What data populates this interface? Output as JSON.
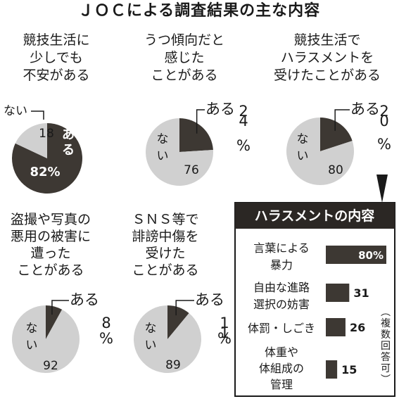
{
  "title": "ＪＯＣによる調査結果の主な内容",
  "colors": {
    "dark": "#3d3833",
    "light": "#d0d0d0",
    "box_header": "#2b2724"
  },
  "labels": {
    "yes": "ある",
    "no": "ない",
    "percent": "%"
  },
  "chart_data": [
    {
      "type": "pie",
      "question": [
        "競技生活に",
        "少しでも",
        "不安がある"
      ],
      "yes": 82,
      "no": 18,
      "display": {
        "yes": "ある",
        "yes_value": "82%",
        "no": "ない",
        "no_value": "18"
      }
    },
    {
      "type": "pie",
      "question": [
        "うつ傾向だと",
        "感じた",
        "ことがある"
      ],
      "yes": 24,
      "no": 76,
      "display": {
        "yes": "ある",
        "yes_value": "24",
        "no": "ない",
        "no_value": "76"
      }
    },
    {
      "type": "pie",
      "question": [
        "競技生活で",
        "ハラスメントを",
        "受けたことがある"
      ],
      "yes": 20,
      "no": 80,
      "display": {
        "yes": "ある",
        "yes_value": "20",
        "no": "ない",
        "no_value": "80"
      }
    },
    {
      "type": "pie",
      "question": [
        "盗撮や写真の",
        "悪用の被害に",
        "遭った",
        "ことがある"
      ],
      "yes": 8,
      "no": 92,
      "display": {
        "yes": "ある",
        "yes_value": "8",
        "no": "ない",
        "no_value": "92"
      }
    },
    {
      "type": "pie",
      "question": [
        "ＳＮＳ等で",
        "誹謗中傷を",
        "受けた",
        "ことがある"
      ],
      "yes": 11,
      "no": 89,
      "display": {
        "yes": "ある",
        "yes_value": "11",
        "no": "ない",
        "no_value": "89"
      }
    },
    {
      "type": "bar",
      "title": "ハラスメントの内容",
      "categories": [
        [
          "言葉による",
          "暴力"
        ],
        [
          "自由な進路",
          "選択の妨害"
        ],
        [
          "体罰・しごき"
        ],
        [
          "体重や",
          "体組成の",
          "管理"
        ]
      ],
      "values": [
        80,
        31,
        26,
        15
      ],
      "value_labels": [
        "80%",
        "31",
        "26",
        "15"
      ],
      "note": "（複数回答可）"
    }
  ]
}
